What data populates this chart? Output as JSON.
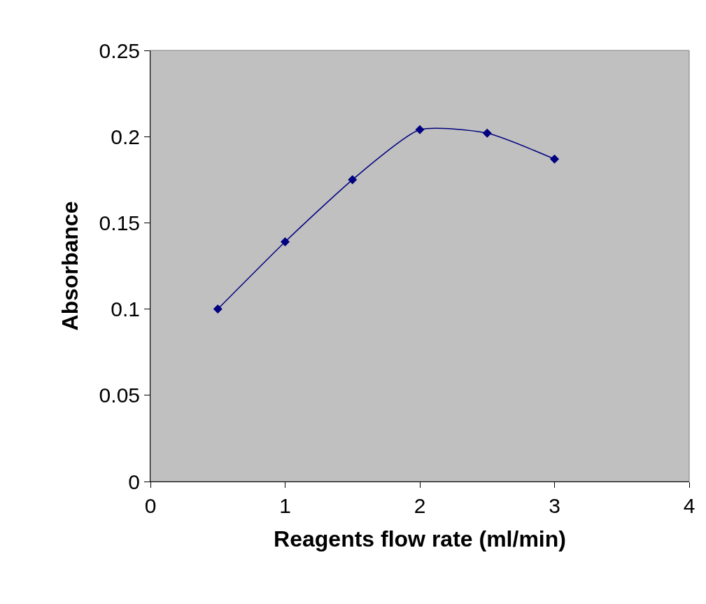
{
  "chart_data": {
    "type": "line",
    "xlabel": "Reagents flow rate (ml/min)",
    "ylabel": "Absorbance",
    "x": [
      0.5,
      1,
      1.5,
      2,
      2.5,
      3
    ],
    "series": [
      {
        "color": "#000080",
        "values": [
          0.1,
          0.139,
          0.175,
          0.204,
          0.202,
          0.187
        ]
      }
    ],
    "xlim": [
      0,
      4
    ],
    "xticks": [
      0,
      1,
      2,
      3,
      4
    ],
    "ylim": [
      0,
      0.25
    ],
    "yticks": [
      0,
      0.05,
      0.1,
      0.15,
      0.2,
      0.25
    ],
    "grid": false,
    "marker": "diamond",
    "line_style": "solid"
  }
}
